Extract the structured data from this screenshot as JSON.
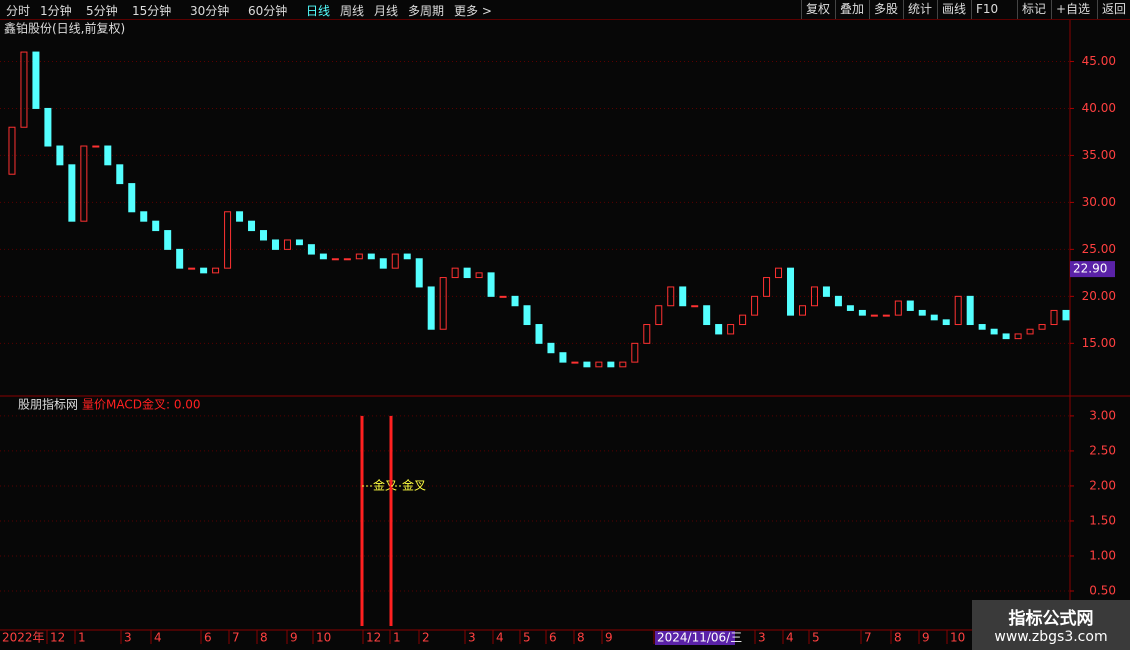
{
  "toolbar": {
    "periods": [
      "分时",
      "1分钟",
      "5分钟",
      "15分钟",
      "30分钟",
      "60分钟",
      "日线",
      "周线",
      "月线",
      "多周期",
      "更多 >"
    ],
    "active": "日线",
    "buttons": [
      "复权",
      "叠加",
      "多股",
      "统计",
      "画线",
      "F10",
      "标记",
      "+自选",
      "返回"
    ]
  },
  "chart_data": [
    {
      "type": "candlestick",
      "title": "鑫铂股份(日线,前复权)",
      "close": [
        33,
        38,
        46,
        40,
        36,
        34,
        28,
        36,
        36,
        34,
        32,
        29,
        28,
        27,
        25,
        23,
        23,
        22.5,
        23,
        29,
        28,
        27,
        26,
        25,
        26,
        25.5,
        24.5,
        24,
        24,
        24,
        24.5,
        24,
        23,
        24.5,
        24,
        21,
        16.5,
        22,
        23,
        22,
        22.5,
        20,
        20,
        19,
        17,
        15,
        14,
        13,
        13,
        12.5,
        13,
        12.5,
        13,
        15,
        17,
        19,
        21,
        19,
        19,
        17,
        16,
        17,
        18,
        20,
        22,
        23,
        18,
        19,
        21,
        20,
        19,
        18.5,
        18,
        18,
        18,
        19.5,
        18.5,
        18,
        17.5,
        17,
        20,
        17,
        16.5,
        16,
        15.5,
        16,
        16.5,
        17,
        18.5,
        17.5
      ],
      "up_color": "#ff3232",
      "down_color": "#54ffff",
      "last_price": {
        "value": 22.9,
        "label": "22.90"
      },
      "ylim": [
        9.5,
        49.2
      ],
      "yticks": [
        {
          "value": 15,
          "label": "15.00"
        },
        {
          "value": 20,
          "label": "20.00"
        },
        {
          "value": 25,
          "label": "25.00"
        },
        {
          "value": 30,
          "label": "30.00"
        },
        {
          "value": 35,
          "label": "35.00"
        },
        {
          "value": 40,
          "label": "40.00"
        },
        {
          "value": 45,
          "label": "45.00"
        }
      ],
      "grid": true
    },
    {
      "type": "signal",
      "source": "股朋指标网",
      "title": "量价MACD金叉: 0.00",
      "color": "#ff2020",
      "values": [
        3,
        3
      ],
      "value_labels": [
        "金叉",
        "金叉"
      ],
      "ylim": [
        0,
        3.27
      ],
      "yticks": [
        {
          "value": 0.5,
          "label": "0.50"
        },
        {
          "value": 1,
          "label": "1.00"
        },
        {
          "value": 1.5,
          "label": "1.50"
        },
        {
          "value": 2,
          "label": "2.00"
        },
        {
          "value": 2.5,
          "label": "2.50"
        },
        {
          "value": 3,
          "label": "3.00"
        }
      ],
      "grid": true
    }
  ],
  "time_axis": [
    "2022年",
    "12",
    "1",
    "3",
    "4",
    "6",
    "7",
    "8",
    "9",
    "10",
    "12",
    "1",
    "2",
    "3",
    "4",
    "5",
    "6",
    "8",
    "9",
    "2024/11/06/三",
    "3",
    "4",
    "5",
    "7",
    "8",
    "9",
    "10"
  ],
  "watermark": {
    "name": "指标公式网",
    "url": "www.zbgs3.com"
  }
}
